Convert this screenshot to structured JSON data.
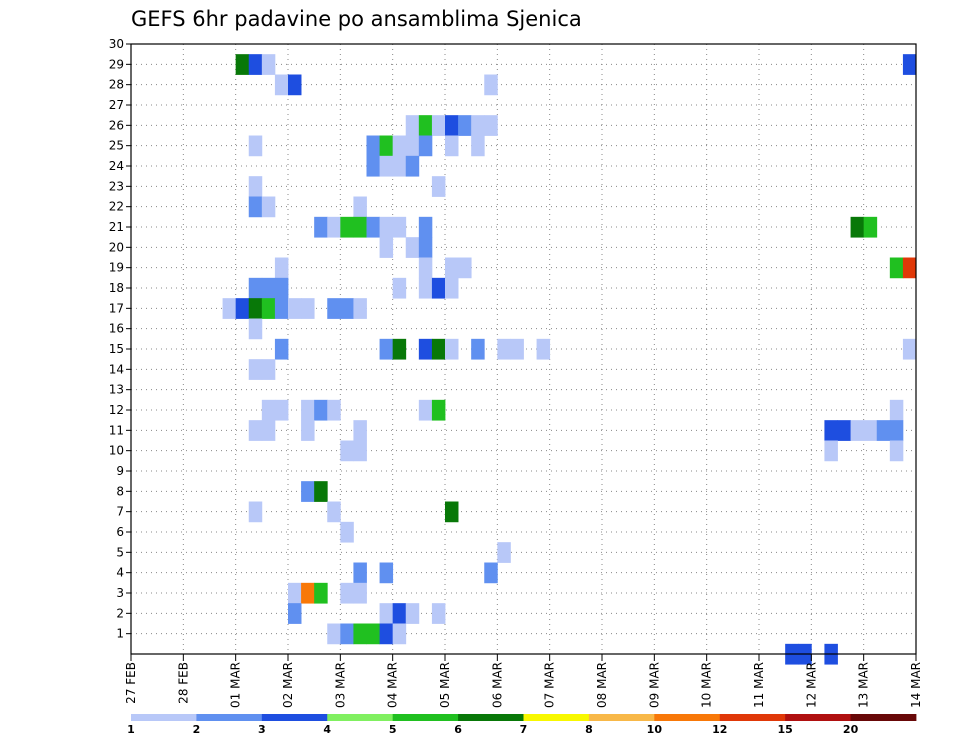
{
  "chart_data": {
    "type": "heatmap",
    "title": "GEFS 6hr padavine po ansamblima Sjenica",
    "xlabel": "",
    "ylabel": "",
    "x_tick_labels": [
      "27 FEB",
      "28 FEB",
      "01 MAR",
      "02 MAR",
      "03 MAR",
      "04 MAR",
      "05 MAR",
      "06 MAR",
      "07 MAR",
      "08 MAR",
      "09 MAR",
      "10 MAR",
      "11 MAR",
      "12 MAR",
      "13 MAR",
      "14 MAR"
    ],
    "y_tick_labels": [
      "1",
      "2",
      "3",
      "4",
      "5",
      "6",
      "7",
      "8",
      "9",
      "10",
      "11",
      "12",
      "13",
      "14",
      "15",
      "16",
      "17",
      "18",
      "19",
      "20",
      "21",
      "22",
      "23",
      "24",
      "25",
      "26",
      "27",
      "28",
      "29",
      "30"
    ],
    "ylim": [
      0,
      30
    ],
    "time_steps": 60,
    "grid": true,
    "legend": {
      "placement": "bottom",
      "labels": [
        "1",
        "2",
        "3",
        "4",
        "5",
        "6",
        "7",
        "8",
        "10",
        "12",
        "15",
        "20"
      ],
      "colors": [
        "#b8c8f8",
        "#6090f0",
        "#1e4ee0",
        "#80f060",
        "#20c020",
        "#087808",
        "#f8f800",
        "#f8b848",
        "#f87808",
        "#e03808",
        "#b01010",
        "#680808"
      ]
    },
    "cells": [
      [
        8,
        29,
        6
      ],
      [
        9,
        29,
        3
      ],
      [
        10,
        29,
        1
      ],
      [
        59,
        29,
        3
      ],
      [
        11,
        28,
        1
      ],
      [
        12,
        28,
        3
      ],
      [
        27,
        28,
        1
      ],
      [
        21,
        26,
        1
      ],
      [
        22,
        26,
        5
      ],
      [
        23,
        26,
        1
      ],
      [
        24,
        26,
        3
      ],
      [
        25,
        26,
        2
      ],
      [
        26,
        26,
        1
      ],
      [
        27,
        26,
        1
      ],
      [
        9,
        25,
        1
      ],
      [
        18,
        25,
        2
      ],
      [
        19,
        25,
        5
      ],
      [
        20,
        25,
        1
      ],
      [
        21,
        25,
        1
      ],
      [
        22,
        25,
        2
      ],
      [
        24,
        25,
        1
      ],
      [
        26,
        25,
        1
      ],
      [
        18,
        24,
        2
      ],
      [
        19,
        24,
        1
      ],
      [
        20,
        24,
        1
      ],
      [
        21,
        24,
        2
      ],
      [
        9,
        23,
        1
      ],
      [
        23,
        23,
        1
      ],
      [
        9,
        22,
        2
      ],
      [
        10,
        22,
        1
      ],
      [
        17,
        22,
        1
      ],
      [
        14,
        21,
        2
      ],
      [
        15,
        21,
        1
      ],
      [
        16,
        21,
        5
      ],
      [
        17,
        21,
        5
      ],
      [
        18,
        21,
        2
      ],
      [
        19,
        21,
        1
      ],
      [
        20,
        21,
        1
      ],
      [
        22,
        21,
        2
      ],
      [
        55,
        21,
        6
      ],
      [
        56,
        21,
        5
      ],
      [
        19,
        20,
        1
      ],
      [
        21,
        20,
        1
      ],
      [
        22,
        20,
        2
      ],
      [
        11,
        19,
        1
      ],
      [
        22,
        19,
        1
      ],
      [
        24,
        19,
        1
      ],
      [
        25,
        19,
        1
      ],
      [
        58,
        19,
        5
      ],
      [
        59,
        19,
        10
      ],
      [
        9,
        18,
        2
      ],
      [
        10,
        18,
        2
      ],
      [
        11,
        18,
        2
      ],
      [
        20,
        18,
        1
      ],
      [
        22,
        18,
        1
      ],
      [
        23,
        18,
        3
      ],
      [
        24,
        18,
        1
      ],
      [
        7,
        17,
        1
      ],
      [
        8,
        17,
        3
      ],
      [
        9,
        17,
        6
      ],
      [
        10,
        17,
        5
      ],
      [
        11,
        17,
        2
      ],
      [
        12,
        17,
        1
      ],
      [
        13,
        17,
        1
      ],
      [
        15,
        17,
        2
      ],
      [
        16,
        17,
        2
      ],
      [
        17,
        17,
        1
      ],
      [
        9,
        16,
        1
      ],
      [
        11,
        15,
        2
      ],
      [
        19,
        15,
        2
      ],
      [
        20,
        15,
        6
      ],
      [
        22,
        15,
        3
      ],
      [
        23,
        15,
        6
      ],
      [
        24,
        15,
        1
      ],
      [
        26,
        15,
        2
      ],
      [
        28,
        15,
        1
      ],
      [
        29,
        15,
        1
      ],
      [
        31,
        15,
        1
      ],
      [
        59,
        15,
        1
      ],
      [
        9,
        14,
        1
      ],
      [
        10,
        14,
        1
      ],
      [
        10,
        12,
        1
      ],
      [
        11,
        12,
        1
      ],
      [
        13,
        12,
        1
      ],
      [
        14,
        12,
        2
      ],
      [
        15,
        12,
        1
      ],
      [
        22,
        12,
        1
      ],
      [
        23,
        12,
        5
      ],
      [
        58,
        12,
        1
      ],
      [
        9,
        11,
        1
      ],
      [
        10,
        11,
        1
      ],
      [
        13,
        11,
        1
      ],
      [
        17,
        11,
        1
      ],
      [
        53,
        11,
        3
      ],
      [
        54,
        11,
        3
      ],
      [
        55,
        11,
        1
      ],
      [
        56,
        11,
        1
      ],
      [
        57,
        11,
        2
      ],
      [
        58,
        11,
        2
      ],
      [
        16,
        10,
        1
      ],
      [
        17,
        10,
        1
      ],
      [
        53,
        10,
        1
      ],
      [
        58,
        10,
        1
      ],
      [
        13,
        8,
        2
      ],
      [
        14,
        8,
        6
      ],
      [
        9,
        7,
        1
      ],
      [
        15,
        7,
        1
      ],
      [
        24,
        7,
        6
      ],
      [
        16,
        6,
        1
      ],
      [
        28,
        5,
        1
      ],
      [
        17,
        4,
        2
      ],
      [
        19,
        4,
        2
      ],
      [
        27,
        4,
        2
      ],
      [
        12,
        3,
        1
      ],
      [
        13,
        3,
        9
      ],
      [
        14,
        3,
        5
      ],
      [
        16,
        3,
        1
      ],
      [
        17,
        3,
        1
      ],
      [
        12,
        2,
        2
      ],
      [
        19,
        2,
        1
      ],
      [
        20,
        2,
        3
      ],
      [
        21,
        2,
        1
      ],
      [
        23,
        2,
        1
      ],
      [
        15,
        1,
        1
      ],
      [
        16,
        1,
        2
      ],
      [
        17,
        1,
        5
      ],
      [
        18,
        1,
        5
      ],
      [
        19,
        1,
        3
      ],
      [
        20,
        1,
        1
      ],
      [
        50,
        0,
        3
      ],
      [
        51,
        0,
        3
      ],
      [
        53,
        0,
        3
      ]
    ]
  }
}
